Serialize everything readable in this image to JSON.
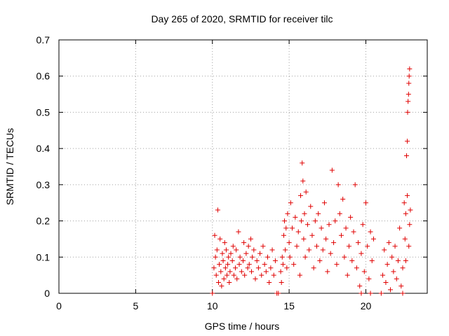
{
  "chart_data": {
    "type": "scatter",
    "title": "Day 265 of 2020, SRMTID for receiver tilc",
    "xlabel": "GPS time / hours",
    "ylabel": "SRMTID / TECUs",
    "xlim": [
      0,
      24
    ],
    "ylim": [
      0,
      0.7
    ],
    "grid": true,
    "marker": "+",
    "color": "#e00000",
    "xticks": [
      0,
      5,
      10,
      15,
      20
    ],
    "xtick_labels": [
      "0",
      "5",
      "10",
      "15",
      "20"
    ],
    "yticks": [
      0,
      0.1,
      0.2,
      0.3,
      0.4,
      0.5,
      0.6,
      0.7
    ],
    "ytick_labels": [
      "0",
      "0.1",
      "0.2",
      "0.3",
      "0.4",
      "0.5",
      "0.6",
      "0.7"
    ],
    "series": [
      {
        "name": "SRMTID",
        "points": [
          [
            10.0,
            0.0
          ],
          [
            10.1,
            0.07
          ],
          [
            10.15,
            0.16
          ],
          [
            10.2,
            0.1
          ],
          [
            10.25,
            0.05
          ],
          [
            10.3,
            0.12
          ],
          [
            10.35,
            0.23
          ],
          [
            10.4,
            0.03
          ],
          [
            10.45,
            0.08
          ],
          [
            10.5,
            0.15
          ],
          [
            10.55,
            0.06
          ],
          [
            10.6,
            0.02
          ],
          [
            10.65,
            0.11
          ],
          [
            10.7,
            0.09
          ],
          [
            10.75,
            0.04
          ],
          [
            10.8,
            0.14
          ],
          [
            10.85,
            0.07
          ],
          [
            10.9,
            0.12
          ],
          [
            10.95,
            0.05
          ],
          [
            11.0,
            0.08
          ],
          [
            11.05,
            0.1
          ],
          [
            11.1,
            0.03
          ],
          [
            11.15,
            0.06
          ],
          [
            11.2,
            0.11
          ],
          [
            11.3,
            0.09
          ],
          [
            11.35,
            0.13
          ],
          [
            11.4,
            0.05
          ],
          [
            11.5,
            0.07
          ],
          [
            11.55,
            0.12
          ],
          [
            11.6,
            0.04
          ],
          [
            11.7,
            0.17
          ],
          [
            11.75,
            0.08
          ],
          [
            11.8,
            0.1
          ],
          [
            11.9,
            0.06
          ],
          [
            12.0,
            0.09
          ],
          [
            12.05,
            0.14
          ],
          [
            12.1,
            0.05
          ],
          [
            12.2,
            0.11
          ],
          [
            12.3,
            0.07
          ],
          [
            12.35,
            0.13
          ],
          [
            12.4,
            0.08
          ],
          [
            12.5,
            0.15
          ],
          [
            12.55,
            0.06
          ],
          [
            12.6,
            0.1
          ],
          [
            12.7,
            0.12
          ],
          [
            12.8,
            0.04
          ],
          [
            12.9,
            0.09
          ],
          [
            13.0,
            0.07
          ],
          [
            13.1,
            0.11
          ],
          [
            13.2,
            0.05
          ],
          [
            13.3,
            0.13
          ],
          [
            13.4,
            0.08
          ],
          [
            13.5,
            0.06
          ],
          [
            13.6,
            0.1
          ],
          [
            13.7,
            0.03
          ],
          [
            13.8,
            0.07
          ],
          [
            13.9,
            0.12
          ],
          [
            14.0,
            0.05
          ],
          [
            14.1,
            0.09
          ],
          [
            14.2,
            0.0
          ],
          [
            14.3,
            0.0
          ],
          [
            14.45,
            0.06
          ],
          [
            14.5,
            0.03
          ],
          [
            14.55,
            0.1
          ],
          [
            14.6,
            0.08
          ],
          [
            14.65,
            0.16
          ],
          [
            14.7,
            0.2
          ],
          [
            14.75,
            0.12
          ],
          [
            14.8,
            0.18
          ],
          [
            14.85,
            0.07
          ],
          [
            14.9,
            0.22
          ],
          [
            15.0,
            0.14
          ],
          [
            15.05,
            0.1
          ],
          [
            15.1,
            0.25
          ],
          [
            15.2,
            0.18
          ],
          [
            15.3,
            0.08
          ],
          [
            15.4,
            0.21
          ],
          [
            15.5,
            0.13
          ],
          [
            15.6,
            0.17
          ],
          [
            15.7,
            0.05
          ],
          [
            15.75,
            0.27
          ],
          [
            15.8,
            0.2
          ],
          [
            15.85,
            0.36
          ],
          [
            15.9,
            0.31
          ],
          [
            15.95,
            0.15
          ],
          [
            16.0,
            0.22
          ],
          [
            16.05,
            0.1
          ],
          [
            16.1,
            0.28
          ],
          [
            16.2,
            0.19
          ],
          [
            16.3,
            0.12
          ],
          [
            16.4,
            0.24
          ],
          [
            16.5,
            0.16
          ],
          [
            16.6,
            0.07
          ],
          [
            16.7,
            0.2
          ],
          [
            16.8,
            0.13
          ],
          [
            16.9,
            0.22
          ],
          [
            17.0,
            0.09
          ],
          [
            17.1,
            0.18
          ],
          [
            17.2,
            0.12
          ],
          [
            17.3,
            0.25
          ],
          [
            17.4,
            0.15
          ],
          [
            17.5,
            0.06
          ],
          [
            17.6,
            0.19
          ],
          [
            17.7,
            0.11
          ],
          [
            17.8,
            0.34
          ],
          [
            17.9,
            0.14
          ],
          [
            18.0,
            0.2
          ],
          [
            18.1,
            0.08
          ],
          [
            18.2,
            0.3
          ],
          [
            18.3,
            0.22
          ],
          [
            18.4,
            0.16
          ],
          [
            18.5,
            0.26
          ],
          [
            18.6,
            0.1
          ],
          [
            18.7,
            0.18
          ],
          [
            18.8,
            0.05
          ],
          [
            18.9,
            0.13
          ],
          [
            19.0,
            0.21
          ],
          [
            19.1,
            0.09
          ],
          [
            19.2,
            0.17
          ],
          [
            19.3,
            0.3
          ],
          [
            19.4,
            0.07
          ],
          [
            19.5,
            0.14
          ],
          [
            19.6,
            0.02
          ],
          [
            19.7,
            0.11
          ],
          [
            19.8,
            0.19
          ],
          [
            19.9,
            0.06
          ],
          [
            20.0,
            0.25
          ],
          [
            20.1,
            0.13
          ],
          [
            20.2,
            0.04
          ],
          [
            20.3,
            0.17
          ],
          [
            20.4,
            0.09
          ],
          [
            20.5,
            0.15
          ],
          [
            21.0,
            0.0
          ],
          [
            21.1,
            0.05
          ],
          [
            21.2,
            0.12
          ],
          [
            21.3,
            0.03
          ],
          [
            21.4,
            0.08
          ],
          [
            21.5,
            0.14
          ],
          [
            21.6,
            0.01
          ],
          [
            21.7,
            0.1
          ],
          [
            21.8,
            0.06
          ],
          [
            21.9,
            0.13
          ],
          [
            22.0,
            0.04
          ],
          [
            22.1,
            0.09
          ],
          [
            22.2,
            0.18
          ],
          [
            22.3,
            0.02
          ],
          [
            22.4,
            0.07
          ],
          [
            22.5,
            0.25
          ],
          [
            22.55,
            0.15
          ],
          [
            22.6,
            0.22
          ],
          [
            22.65,
            0.38
          ],
          [
            22.7,
            0.42
          ],
          [
            22.72,
            0.5
          ],
          [
            22.75,
            0.53
          ],
          [
            22.78,
            0.55
          ],
          [
            22.8,
            0.58
          ],
          [
            22.82,
            0.6
          ],
          [
            22.85,
            0.62
          ],
          [
            22.7,
            0.27
          ],
          [
            22.8,
            0.13
          ],
          [
            22.85,
            0.19
          ],
          [
            22.9,
            0.23
          ],
          [
            22.6,
            0.09
          ],
          [
            22.4,
            0.0
          ],
          [
            20.3,
            0.0
          ],
          [
            19.7,
            0.0
          ]
        ]
      }
    ]
  }
}
